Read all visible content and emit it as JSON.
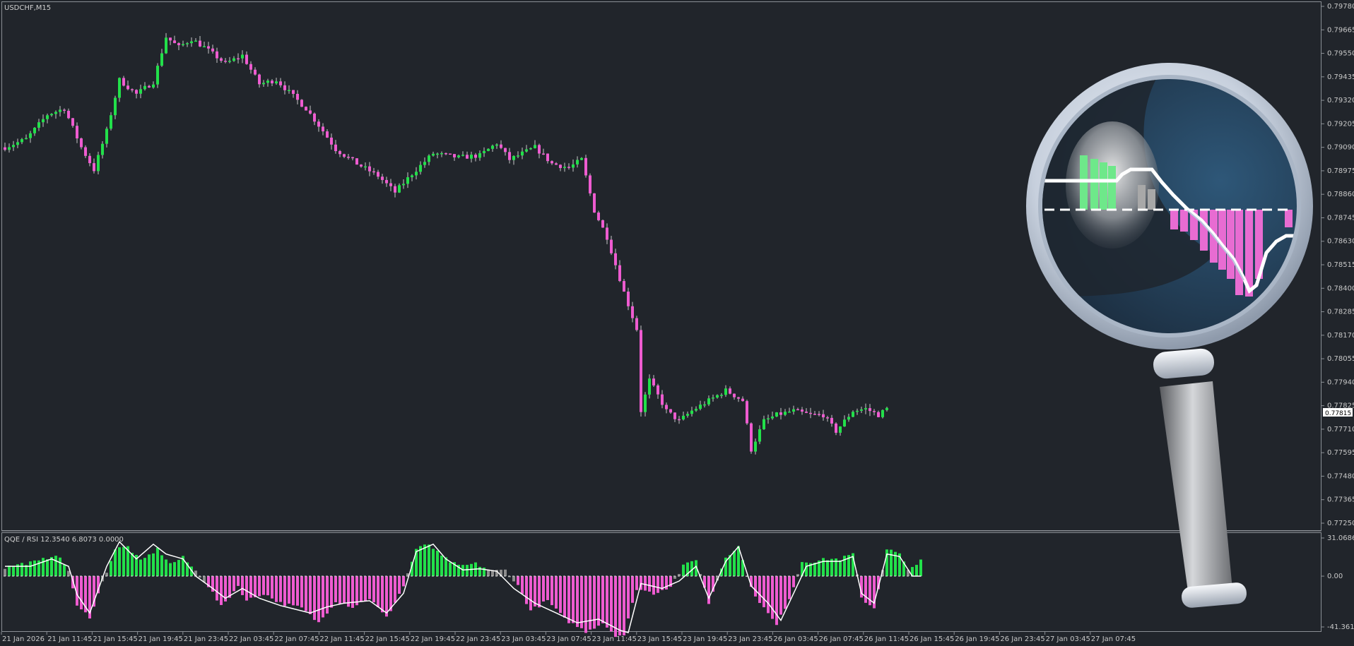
{
  "window": {
    "symbol_label": "USDCHF,M15",
    "indicator_label": "QQE / RSI 12.3540 6.8073 0.0000"
  },
  "colors": {
    "background": "#21252b",
    "frame": "#8a8f95",
    "bull": "#22e04a",
    "bear": "#ee5bd0",
    "neutral": "#8d8d8d",
    "signal_line": "#ffffff",
    "price_tag_bg": "#ffffff"
  },
  "chart_data": [
    {
      "type": "candlestick",
      "symbol": "USDCHF",
      "timeframe": "M15",
      "ylim": [
        0.7725,
        0.7978
      ],
      "ytick_labels": [
        "0.79780",
        "0.79665",
        "0.79550",
        "0.79435",
        "0.79320",
        "0.79205",
        "0.79090",
        "0.78975",
        "0.78860",
        "0.78745",
        "0.78630",
        "0.78515",
        "0.78400",
        "0.78285",
        "0.78170",
        "0.78055",
        "0.77940",
        "0.77825",
        "0.77710",
        "0.77595",
        "0.77480",
        "0.77365",
        "0.77250"
      ],
      "current_price_label": "0.77815",
      "xtick_labels": [
        "21 Jan 2026",
        "21 Jan 11:45",
        "21 Jan 15:45",
        "21 Jan 19:45",
        "21 Jan 23:45",
        "22 Jan 03:45",
        "22 Jan 07:45",
        "22 Jan 11:45",
        "22 Jan 15:45",
        "22 Jan 19:45",
        "22 Jan 23:45",
        "23 Jan 03:45",
        "23 Jan 07:45",
        "23 Jan 11:45",
        "23 Jan 15:45",
        "23 Jan 19:45",
        "23 Jan 23:45",
        "26 Jan 03:45",
        "26 Jan 07:45",
        "26 Jan 11:45",
        "26 Jan 15:45",
        "26 Jan 19:45",
        "26 Jan 23:45",
        "27 Jan 03:45",
        "27 Jan 07:45"
      ],
      "close_path": [
        [
          0,
          0.7909
        ],
        [
          5,
          0.7913
        ],
        [
          10,
          0.7925
        ],
        [
          14,
          0.7928
        ],
        [
          18,
          0.7909
        ],
        [
          21,
          0.7898
        ],
        [
          24,
          0.7917
        ],
        [
          27,
          0.7942
        ],
        [
          31,
          0.7935
        ],
        [
          35,
          0.7941
        ],
        [
          38,
          0.7963
        ],
        [
          41,
          0.7958
        ],
        [
          44,
          0.7962
        ],
        [
          47,
          0.7958
        ],
        [
          52,
          0.795
        ],
        [
          56,
          0.7954
        ],
        [
          60,
          0.794
        ],
        [
          64,
          0.7942
        ],
        [
          67,
          0.7936
        ],
        [
          71,
          0.7928
        ],
        [
          75,
          0.7917
        ],
        [
          78,
          0.7908
        ],
        [
          83,
          0.7901
        ],
        [
          88,
          0.7895
        ],
        [
          92,
          0.7887
        ],
        [
          96,
          0.7896
        ],
        [
          101,
          0.7906
        ],
        [
          107,
          0.7904
        ],
        [
          112,
          0.7905
        ],
        [
          116,
          0.7911
        ],
        [
          119,
          0.7903
        ],
        [
          125,
          0.7909
        ],
        [
          129,
          0.7901
        ],
        [
          133,
          0.7899
        ],
        [
          136,
          0.7903
        ],
        [
          139,
          0.7878
        ],
        [
          142,
          0.7865
        ],
        [
          146,
          0.7838
        ],
        [
          149,
          0.782
        ],
        [
          150,
          0.778
        ],
        [
          152,
          0.7795
        ],
        [
          156,
          0.778
        ],
        [
          159,
          0.7775
        ],
        [
          162,
          0.778
        ],
        [
          166,
          0.7785
        ],
        [
          170,
          0.779
        ],
        [
          174,
          0.7785
        ],
        [
          176,
          0.7761
        ],
        [
          179,
          0.7775
        ],
        [
          182,
          0.7778
        ],
        [
          186,
          0.778
        ],
        [
          190,
          0.7778
        ],
        [
          193,
          0.7778
        ],
        [
          196,
          0.777
        ],
        [
          200,
          0.778
        ],
        [
          203,
          0.7781
        ],
        [
          206,
          0.7778
        ],
        [
          208,
          0.7781
        ]
      ]
    },
    {
      "type": "histogram+line",
      "name": "QQE / RSI",
      "ylim": [
        -41.3613,
        31.0686
      ],
      "ytick_labels": [
        "31.0686",
        "0.00",
        "-41.3613"
      ],
      "hist_path": [
        [
          0,
          7
        ],
        [
          4,
          10
        ],
        [
          8,
          12
        ],
        [
          12,
          18
        ],
        [
          15,
          5
        ],
        [
          17,
          -25
        ],
        [
          20,
          -33
        ],
        [
          23,
          -5
        ],
        [
          26,
          22
        ],
        [
          29,
          24
        ],
        [
          32,
          12
        ],
        [
          36,
          22
        ],
        [
          39,
          10
        ],
        [
          42,
          15
        ],
        [
          45,
          4
        ],
        [
          48,
          -8
        ],
        [
          51,
          -25
        ],
        [
          55,
          -8
        ],
        [
          57,
          -20
        ],
        [
          61,
          -14
        ],
        [
          65,
          -22
        ],
        [
          70,
          -26
        ],
        [
          74,
          -38
        ],
        [
          78,
          -20
        ],
        [
          82,
          -25
        ],
        [
          86,
          -18
        ],
        [
          90,
          -34
        ],
        [
          94,
          -8
        ],
        [
          97,
          22
        ],
        [
          100,
          26
        ],
        [
          103,
          16
        ],
        [
          107,
          8
        ],
        [
          111,
          10
        ],
        [
          115,
          4
        ],
        [
          118,
          5
        ],
        [
          121,
          -8
        ],
        [
          124,
          -28
        ],
        [
          128,
          -20
        ],
        [
          132,
          -35
        ],
        [
          137,
          -45
        ],
        [
          141,
          -38
        ],
        [
          144,
          -48
        ],
        [
          146,
          -48
        ],
        [
          149,
          -10
        ],
        [
          153,
          -14
        ],
        [
          157,
          -8
        ],
        [
          160,
          8
        ],
        [
          163,
          14
        ],
        [
          166,
          -22
        ],
        [
          170,
          16
        ],
        [
          173,
          24
        ],
        [
          176,
          -10
        ],
        [
          179,
          -26
        ],
        [
          182,
          -40
        ],
        [
          185,
          -18
        ],
        [
          188,
          12
        ],
        [
          191,
          12
        ],
        [
          194,
          14
        ],
        [
          197,
          14
        ],
        [
          200,
          18
        ],
        [
          202,
          -18
        ],
        [
          205,
          -26
        ],
        [
          208,
          22
        ],
        [
          211,
          18
        ],
        [
          213,
          4
        ],
        [
          216,
          14
        ]
      ],
      "line_path": [
        [
          0,
          8
        ],
        [
          6,
          8
        ],
        [
          11,
          14
        ],
        [
          15,
          8
        ],
        [
          17,
          -15
        ],
        [
          20,
          -30
        ],
        [
          24,
          8
        ],
        [
          27,
          28
        ],
        [
          31,
          14
        ],
        [
          35,
          26
        ],
        [
          38,
          18
        ],
        [
          42,
          14
        ],
        [
          45,
          0
        ],
        [
          49,
          -10
        ],
        [
          52,
          -18
        ],
        [
          56,
          -10
        ],
        [
          60,
          -18
        ],
        [
          65,
          -24
        ],
        [
          72,
          -30
        ],
        [
          76,
          -25
        ],
        [
          80,
          -22
        ],
        [
          86,
          -20
        ],
        [
          90,
          -30
        ],
        [
          94,
          -14
        ],
        [
          97,
          20
        ],
        [
          101,
          26
        ],
        [
          104,
          14
        ],
        [
          108,
          5
        ],
        [
          112,
          6
        ],
        [
          116,
          4
        ],
        [
          120,
          -10
        ],
        [
          125,
          -22
        ],
        [
          130,
          -30
        ],
        [
          135,
          -38
        ],
        [
          140,
          -35
        ],
        [
          145,
          -44
        ],
        [
          147,
          -46
        ],
        [
          150,
          -6
        ],
        [
          155,
          -10
        ],
        [
          159,
          -4
        ],
        [
          163,
          8
        ],
        [
          166,
          -18
        ],
        [
          170,
          12
        ],
        [
          173,
          24
        ],
        [
          176,
          -8
        ],
        [
          180,
          -22
        ],
        [
          183,
          -36
        ],
        [
          186,
          -14
        ],
        [
          189,
          8
        ],
        [
          193,
          12
        ],
        [
          197,
          12
        ],
        [
          200,
          16
        ],
        [
          202,
          -14
        ],
        [
          205,
          -22
        ],
        [
          208,
          18
        ],
        [
          211,
          16
        ],
        [
          214,
          0
        ],
        [
          216,
          0
        ]
      ]
    }
  ]
}
